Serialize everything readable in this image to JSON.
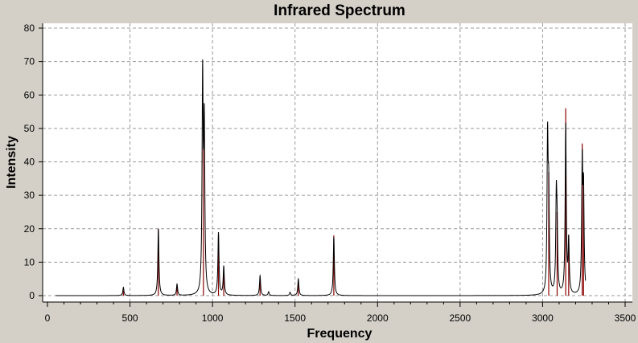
{
  "window": {
    "title": "Infrared Spectrum"
  },
  "colors": {
    "background": "#d4d0c8",
    "plot_area": "#ffffff",
    "spectrum_line": "#000000",
    "stick_lines": "#8b0000"
  },
  "chart_data": {
    "type": "line",
    "title": "Infrared Spectrum",
    "xlabel": "Frequency",
    "ylabel": "Intensity",
    "xlim": [
      0,
      3500
    ],
    "ylim": [
      0,
      80
    ],
    "x_ticks": [
      0,
      500,
      1000,
      1500,
      2000,
      2500,
      3000,
      3500
    ],
    "y_ticks": [
      0,
      10,
      20,
      30,
      40,
      50,
      60,
      70,
      80
    ],
    "grid": true,
    "legend": "none",
    "spectrum_range": [
      50,
      3260
    ],
    "series": [
      {
        "kind": "broadened-spectrum",
        "peaks": [
          {
            "x": 460,
            "y": 2.5
          },
          {
            "x": 672,
            "y": 20
          },
          {
            "x": 785,
            "y": 3.5
          },
          {
            "x": 940,
            "y": 71
          },
          {
            "x": 950,
            "y": 57
          },
          {
            "x": 1036,
            "y": 19
          },
          {
            "x": 1068,
            "y": 9
          },
          {
            "x": 1288,
            "y": 6
          },
          {
            "x": 1340,
            "y": 1.2
          },
          {
            "x": 1470,
            "y": 1
          },
          {
            "x": 1520,
            "y": 5
          },
          {
            "x": 1735,
            "y": 17.5
          },
          {
            "x": 3030,
            "y": 53
          },
          {
            "x": 3037,
            "y": 37
          },
          {
            "x": 3083,
            "y": 35.5
          },
          {
            "x": 3088,
            "y": 25
          },
          {
            "x": 3140,
            "y": 52
          },
          {
            "x": 3158,
            "y": 18
          },
          {
            "x": 3240,
            "y": 44
          },
          {
            "x": 3248,
            "y": 36
          }
        ]
      },
      {
        "kind": "sticks",
        "values": [
          {
            "x": 460,
            "y": 1.5
          },
          {
            "x": 672,
            "y": 20
          },
          {
            "x": 785,
            "y": 3
          },
          {
            "x": 945,
            "y": 51
          },
          {
            "x": 1036,
            "y": 18
          },
          {
            "x": 1068,
            "y": 8
          },
          {
            "x": 1288,
            "y": 5
          },
          {
            "x": 1520,
            "y": 4.5
          },
          {
            "x": 1735,
            "y": 18
          },
          {
            "x": 3037,
            "y": 37
          },
          {
            "x": 3088,
            "y": 25
          },
          {
            "x": 3140,
            "y": 56
          },
          {
            "x": 3158,
            "y": 18
          },
          {
            "x": 3240,
            "y": 45.5
          },
          {
            "x": 3248,
            "y": 36
          }
        ]
      }
    ]
  }
}
